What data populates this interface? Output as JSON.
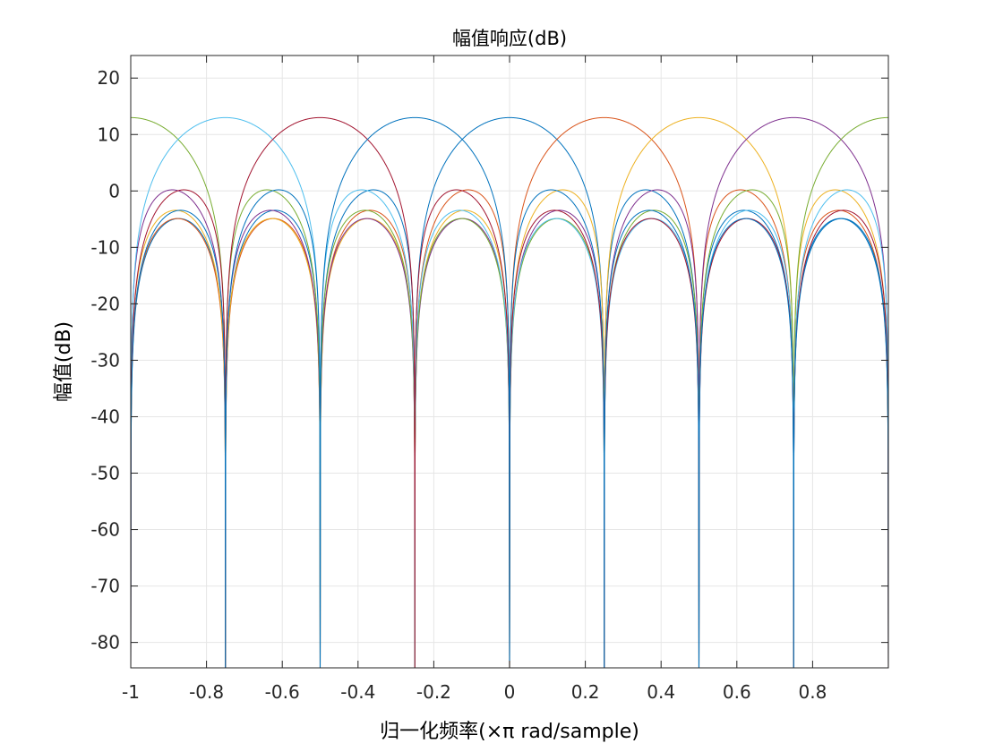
{
  "chart_data": {
    "type": "line",
    "title": "幅值响应(dB)",
    "xlabel": "归一化频率(×π rad/sample)",
    "ylabel": "幅值(dB)",
    "xlim": [
      -1,
      1
    ],
    "ylim": [
      -84.5,
      24
    ],
    "grid": true,
    "xticks": [
      -1,
      -0.8,
      -0.6,
      -0.4,
      -0.2,
      0,
      0.2,
      0.4,
      0.6,
      0.8
    ],
    "xtick_labels": [
      "-1",
      "-0.8",
      "-0.6",
      "-0.4",
      "-0.2",
      "0",
      "0.2",
      "0.4",
      "0.6",
      "0.8"
    ],
    "yticks": [
      20,
      10,
      0,
      -10,
      -20,
      -30,
      -40,
      -50,
      -60,
      -70,
      -80
    ],
    "ytick_labels": [
      "20",
      "10",
      "0",
      "-10",
      "-20",
      "-30",
      "-40",
      "-50",
      "-60",
      "-70",
      "-80"
    ],
    "peak_db": 13,
    "series": [
      {
        "center": 0.0,
        "color": "#0072BD"
      },
      {
        "center": 0.25,
        "color": "#D95319"
      },
      {
        "center": 0.5,
        "color": "#EDB120"
      },
      {
        "center": 0.75,
        "color": "#7E2F8E"
      },
      {
        "center": 1.0,
        "color": "#77AC30"
      },
      {
        "center": -0.75,
        "color": "#4DBEEE"
      },
      {
        "center": -0.5,
        "color": "#A2142F"
      },
      {
        "center": -0.25,
        "color": "#0072BD"
      }
    ]
  }
}
